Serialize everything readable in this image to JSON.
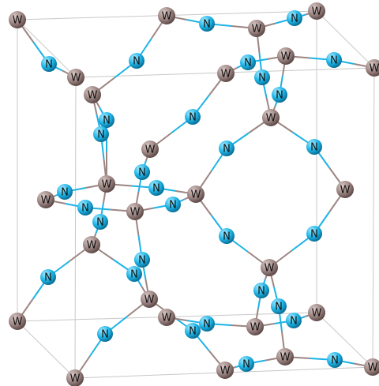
{
  "atoms": [
    "W",
    "W",
    "W",
    "W",
    "W",
    "W",
    "W",
    "W",
    "W",
    "W",
    "W",
    "W",
    "W",
    "W",
    "W",
    "W",
    "W",
    "W",
    "W",
    "W",
    "W",
    "W",
    "W",
    "W",
    "W",
    "W",
    "W",
    "N",
    "N",
    "N",
    "N",
    "N",
    "N",
    "N",
    "N",
    "N",
    "N",
    "N",
    "N",
    "N",
    "N",
    "N",
    "N",
    "N",
    "N",
    "N",
    "N",
    "N",
    "N",
    "N",
    "N",
    "N",
    "N",
    "N",
    "N",
    "N",
    "N",
    "N",
    "N"
  ]
}
